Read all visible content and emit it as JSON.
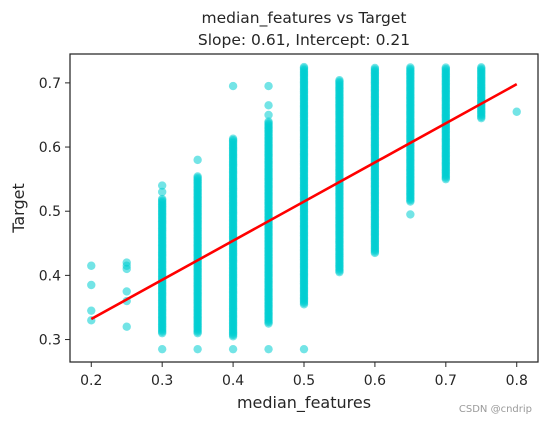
{
  "chart_data": {
    "type": "scatter",
    "title": "median_features vs Target",
    "subtitle": "Slope: 0.61, Intercept: 0.21",
    "xlabel": "median_features",
    "ylabel": "Target",
    "xlim": [
      0.17,
      0.83
    ],
    "ylim": [
      0.265,
      0.745
    ],
    "xticks": [
      "0.2",
      "0.3",
      "0.4",
      "0.5",
      "0.6",
      "0.7",
      "0.8"
    ],
    "yticks": [
      "0.3",
      "0.4",
      "0.5",
      "0.6",
      "0.7"
    ],
    "grid": false,
    "point_color": "#00CED1",
    "line_color": "#FF0000",
    "regression": {
      "slope": 0.61,
      "intercept": 0.21,
      "x_range": [
        0.2,
        0.8
      ]
    },
    "columns": [
      {
        "x": 0.2,
        "y_range": null,
        "outliers": [
          0.415,
          0.385,
          0.345,
          0.33
        ]
      },
      {
        "x": 0.25,
        "y_range": null,
        "outliers": [
          0.42,
          0.415,
          0.41,
          0.375,
          0.36,
          0.32
        ]
      },
      {
        "x": 0.3,
        "y_range": [
          0.31,
          0.52
        ],
        "outliers": [
          0.54,
          0.53,
          0.285
        ]
      },
      {
        "x": 0.35,
        "y_range": [
          0.31,
          0.555
        ],
        "outliers": [
          0.58,
          0.285
        ]
      },
      {
        "x": 0.4,
        "y_range": [
          0.305,
          0.615
        ],
        "outliers": [
          0.695,
          0.285
        ]
      },
      {
        "x": 0.45,
        "y_range": [
          0.325,
          0.64
        ],
        "outliers": [
          0.695,
          0.665,
          0.65,
          0.285
        ]
      },
      {
        "x": 0.5,
        "y_range": [
          0.355,
          0.725
        ],
        "outliers": [
          0.285
        ]
      },
      {
        "x": 0.55,
        "y_range": [
          0.405,
          0.705
        ],
        "outliers": []
      },
      {
        "x": 0.6,
        "y_range": [
          0.435,
          0.725
        ],
        "outliers": []
      },
      {
        "x": 0.65,
        "y_range": [
          0.515,
          0.725
        ],
        "outliers": [
          0.495
        ]
      },
      {
        "x": 0.7,
        "y_range": [
          0.55,
          0.725
        ],
        "outliers": []
      },
      {
        "x": 0.75,
        "y_range": [
          0.645,
          0.725
        ],
        "outliers": []
      },
      {
        "x": 0.8,
        "y_range": null,
        "outliers": [
          0.655
        ]
      }
    ]
  },
  "watermark": "CSDN @cndrip"
}
